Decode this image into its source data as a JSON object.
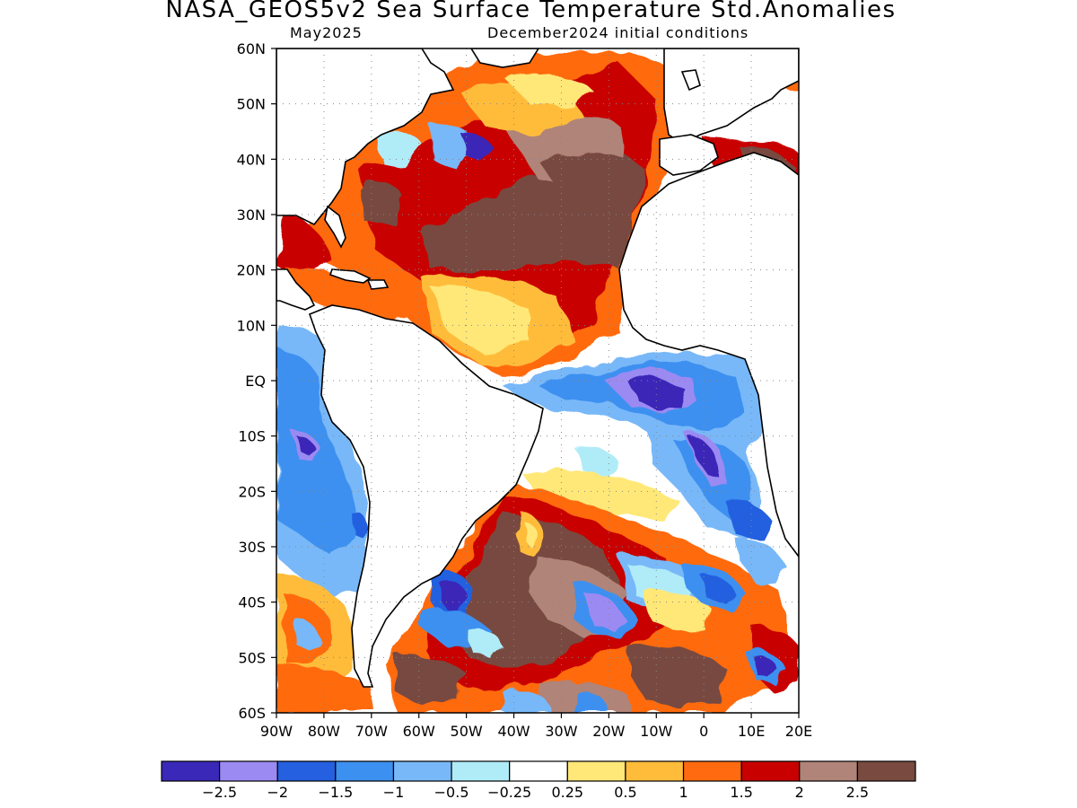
{
  "title": "NASA_GEOS5v2 Sea Surface Temperature Std.Anomalies",
  "subtitle_left": "May2025",
  "subtitle_right": "December2024 initial conditions",
  "map": {
    "lon_range": [
      -90,
      20
    ],
    "lat_range": [
      -60,
      60
    ],
    "lat_labels": [
      "60N",
      "50N",
      "40N",
      "30N",
      "20N",
      "10N",
      "EQ",
      "10S",
      "20S",
      "30S",
      "40S",
      "50S",
      "60S"
    ],
    "lon_labels": [
      "90W",
      "80W",
      "70W",
      "60W",
      "50W",
      "40W",
      "30W",
      "20W",
      "10W",
      "0",
      "10E",
      "20E"
    ],
    "grid": "dotted",
    "land_color": "#ffffff"
  },
  "colorbar": {
    "colors": [
      "#3a28b8",
      "#9b8af2",
      "#2460e0",
      "#3c90f0",
      "#78b8f8",
      "#b0ecf8",
      "#ffffff",
      "#ffe878",
      "#ffbc3a",
      "#ff6a10",
      "#c80000",
      "#b08478",
      "#784a40"
    ],
    "labels": [
      "−2.5",
      "−2",
      "−1.5",
      "−1",
      "−0.5",
      "−0.25",
      "0.25",
      "0.5",
      "1",
      "1.5",
      "2",
      "2.5"
    ]
  }
}
